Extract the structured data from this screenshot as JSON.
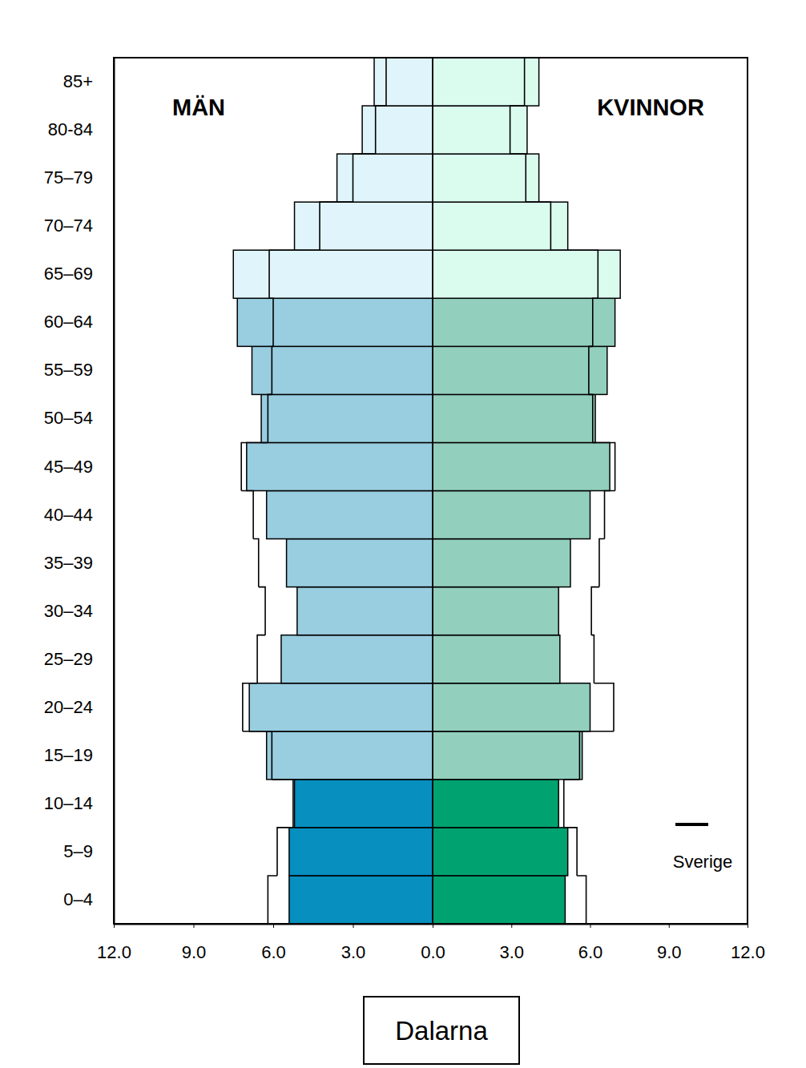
{
  "chart_data": [
    {
      "type": "bar",
      "orientation": "horizontal",
      "title": "Dalarna",
      "subtitle": "MÄN",
      "categories": [
        "0–4",
        "5–9",
        "10–14",
        "15–19",
        "20–24",
        "25–29",
        "30–34",
        "35–39",
        "40–44",
        "45–49",
        "50–54",
        "55–59",
        "60–64",
        "65–69",
        "70–74",
        "75–79",
        "80-84",
        "85+"
      ],
      "xlim": [
        12,
        0
      ],
      "xticks": [
        {
          "value": 12,
          "label": "12.0"
        },
        {
          "value": 9,
          "label": "9.0"
        },
        {
          "value": 6,
          "label": "6.0"
        },
        {
          "value": 3,
          "label": "3.0"
        }
      ],
      "tick_labels": true,
      "series": [
        {
          "type": "bar",
          "values": [
            5.4,
            5.4,
            5.2,
            6.25,
            6.9,
            5.7,
            5.1,
            5.5,
            6.25,
            7.0,
            6.45,
            6.8,
            7.35,
            7.5,
            5.2,
            3.6,
            2.65,
            2.2
          ],
          "colors": [
            "#068fbf",
            "#068fbf",
            "#068fbf",
            "#99cde0",
            "#99cde0",
            "#99cde0",
            "#99cde0",
            "#99cde0",
            "#99cde0",
            "#99cde0",
            "#99cde0",
            "#99cde0",
            "#99cde0",
            "#e0f5fb",
            "#e0f5fb",
            "#e0f5fb",
            "#e0f5fb",
            "#e0f5fb"
          ]
        },
        {
          "type": "step",
          "color": "#000000",
          "values": [
            6.2,
            5.85,
            5.25,
            6.05,
            7.15,
            6.6,
            6.3,
            6.55,
            6.75,
            7.2,
            6.2,
            6.05,
            6.0,
            6.15,
            4.25,
            3.0,
            2.15,
            1.75
          ]
        }
      ]
    },
    {
      "type": "bar",
      "orientation": "horizontal",
      "subtitle": "KVINNOR",
      "categories": [
        "0–4",
        "5–9",
        "10–14",
        "15–19",
        "20–24",
        "25–29",
        "30–34",
        "35–39",
        "40–44",
        "45–49",
        "50–54",
        "55–59",
        "60–64",
        "65–69",
        "70–74",
        "75–79",
        "80-84",
        "85+"
      ],
      "xlim": [
        0,
        12
      ],
      "xticks": [
        {
          "value": 0,
          "label": "0.0"
        },
        {
          "value": 3,
          "label": "3.0"
        },
        {
          "value": 6,
          "label": "6.0"
        },
        {
          "value": 9,
          "label": "9.0"
        },
        {
          "value": 12,
          "label": "12.0"
        }
      ],
      "tick_labels": "x",
      "legend": "lower right",
      "series": [
        {
          "type": "bar",
          "values": [
            5.05,
            5.15,
            4.8,
            5.7,
            6.0,
            4.85,
            4.8,
            5.25,
            6.0,
            6.75,
            6.2,
            6.65,
            6.95,
            7.15,
            5.15,
            4.05,
            3.6,
            4.05
          ],
          "colors": [
            "#00a36f",
            "#00a36f",
            "#00a36f",
            "#92cfbc",
            "#92cfbc",
            "#92cfbc",
            "#92cfbc",
            "#92cfbc",
            "#92cfbc",
            "#92cfbc",
            "#92cfbc",
            "#92cfbc",
            "#92cfbc",
            "#dafcef",
            "#dafcef",
            "#dafcef",
            "#dafcef",
            "#dafcef"
          ]
        },
        {
          "type": "step",
          "name": "Sverige",
          "color": "#000000",
          "values": [
            5.85,
            5.5,
            5.0,
            5.6,
            6.9,
            6.15,
            6.05,
            6.35,
            6.55,
            6.95,
            6.1,
            5.95,
            6.1,
            6.3,
            4.5,
            3.55,
            2.95,
            3.5
          ]
        }
      ]
    }
  ]
}
